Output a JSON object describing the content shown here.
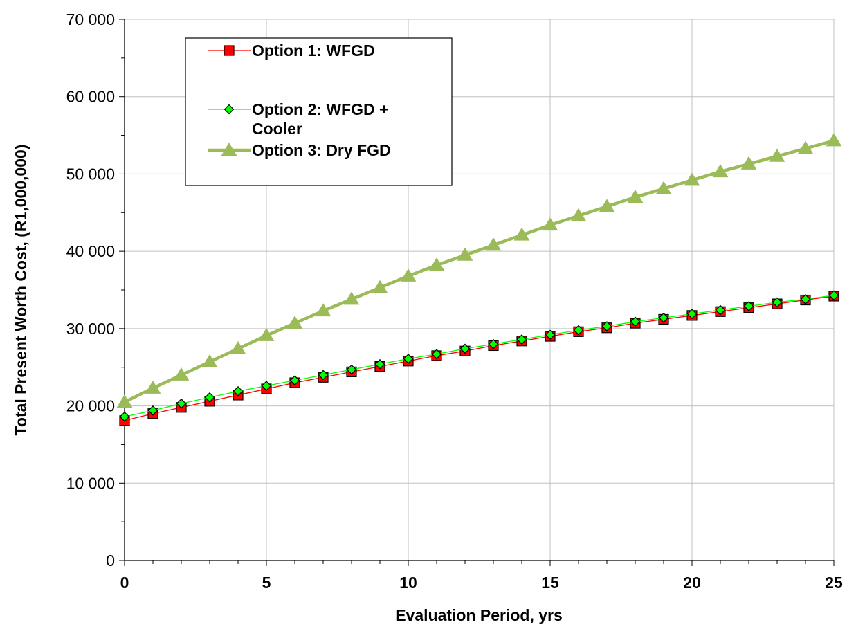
{
  "chart_data": {
    "type": "line",
    "xlabel": "Evaluation Period, yrs",
    "ylabel": "Total Present Worth Cost, (R1,000,000)",
    "xlim": [
      0,
      25
    ],
    "ylim": [
      0,
      70000
    ],
    "x_ticks": [
      "0",
      "5",
      "10",
      "15",
      "20",
      "25"
    ],
    "y_ticks": [
      "0",
      "10 000",
      "20 000",
      "30 000",
      "40 000",
      "50 000",
      "60 000",
      "70 000"
    ],
    "grid": true,
    "legend_position": "top-left",
    "x": [
      0,
      1,
      2,
      3,
      4,
      5,
      6,
      7,
      8,
      9,
      10,
      11,
      12,
      13,
      14,
      15,
      16,
      17,
      18,
      19,
      20,
      21,
      22,
      23,
      24,
      25
    ],
    "series": [
      {
        "name": "Option 1: WFGD",
        "marker": "square",
        "marker_color": "#ff0000",
        "line_color": "#ff0000",
        "values": [
          18100,
          19000,
          19800,
          20600,
          21400,
          22200,
          23000,
          23700,
          24400,
          25100,
          25800,
          26500,
          27100,
          27800,
          28400,
          29000,
          29600,
          30100,
          30700,
          31200,
          31700,
          32200,
          32700,
          33200,
          33700,
          34200
        ]
      },
      {
        "name": "Option 2: WFGD + Cooler",
        "name_lines": [
          "Option 2: WFGD +",
          "Cooler"
        ],
        "marker": "diamond",
        "marker_color": "#00ff00",
        "line_color": "#00ff00",
        "values": [
          18600,
          19400,
          20300,
          21100,
          21900,
          22600,
          23300,
          24000,
          24700,
          25400,
          26100,
          26700,
          27400,
          28000,
          28600,
          29200,
          29800,
          30300,
          30900,
          31400,
          31900,
          32400,
          32900,
          33400,
          33800,
          34300
        ]
      },
      {
        "name": "Option 3: Dry FGD",
        "marker": "triangle",
        "marker_color": "#9bbb59",
        "line_color": "#9bbb59",
        "values": [
          20500,
          22300,
          24000,
          25700,
          27400,
          29100,
          30700,
          32300,
          33800,
          35300,
          36800,
          38200,
          39500,
          40800,
          42100,
          43400,
          44600,
          45800,
          47000,
          48100,
          49200,
          50300,
          51300,
          52300,
          53300,
          54300
        ]
      }
    ]
  }
}
